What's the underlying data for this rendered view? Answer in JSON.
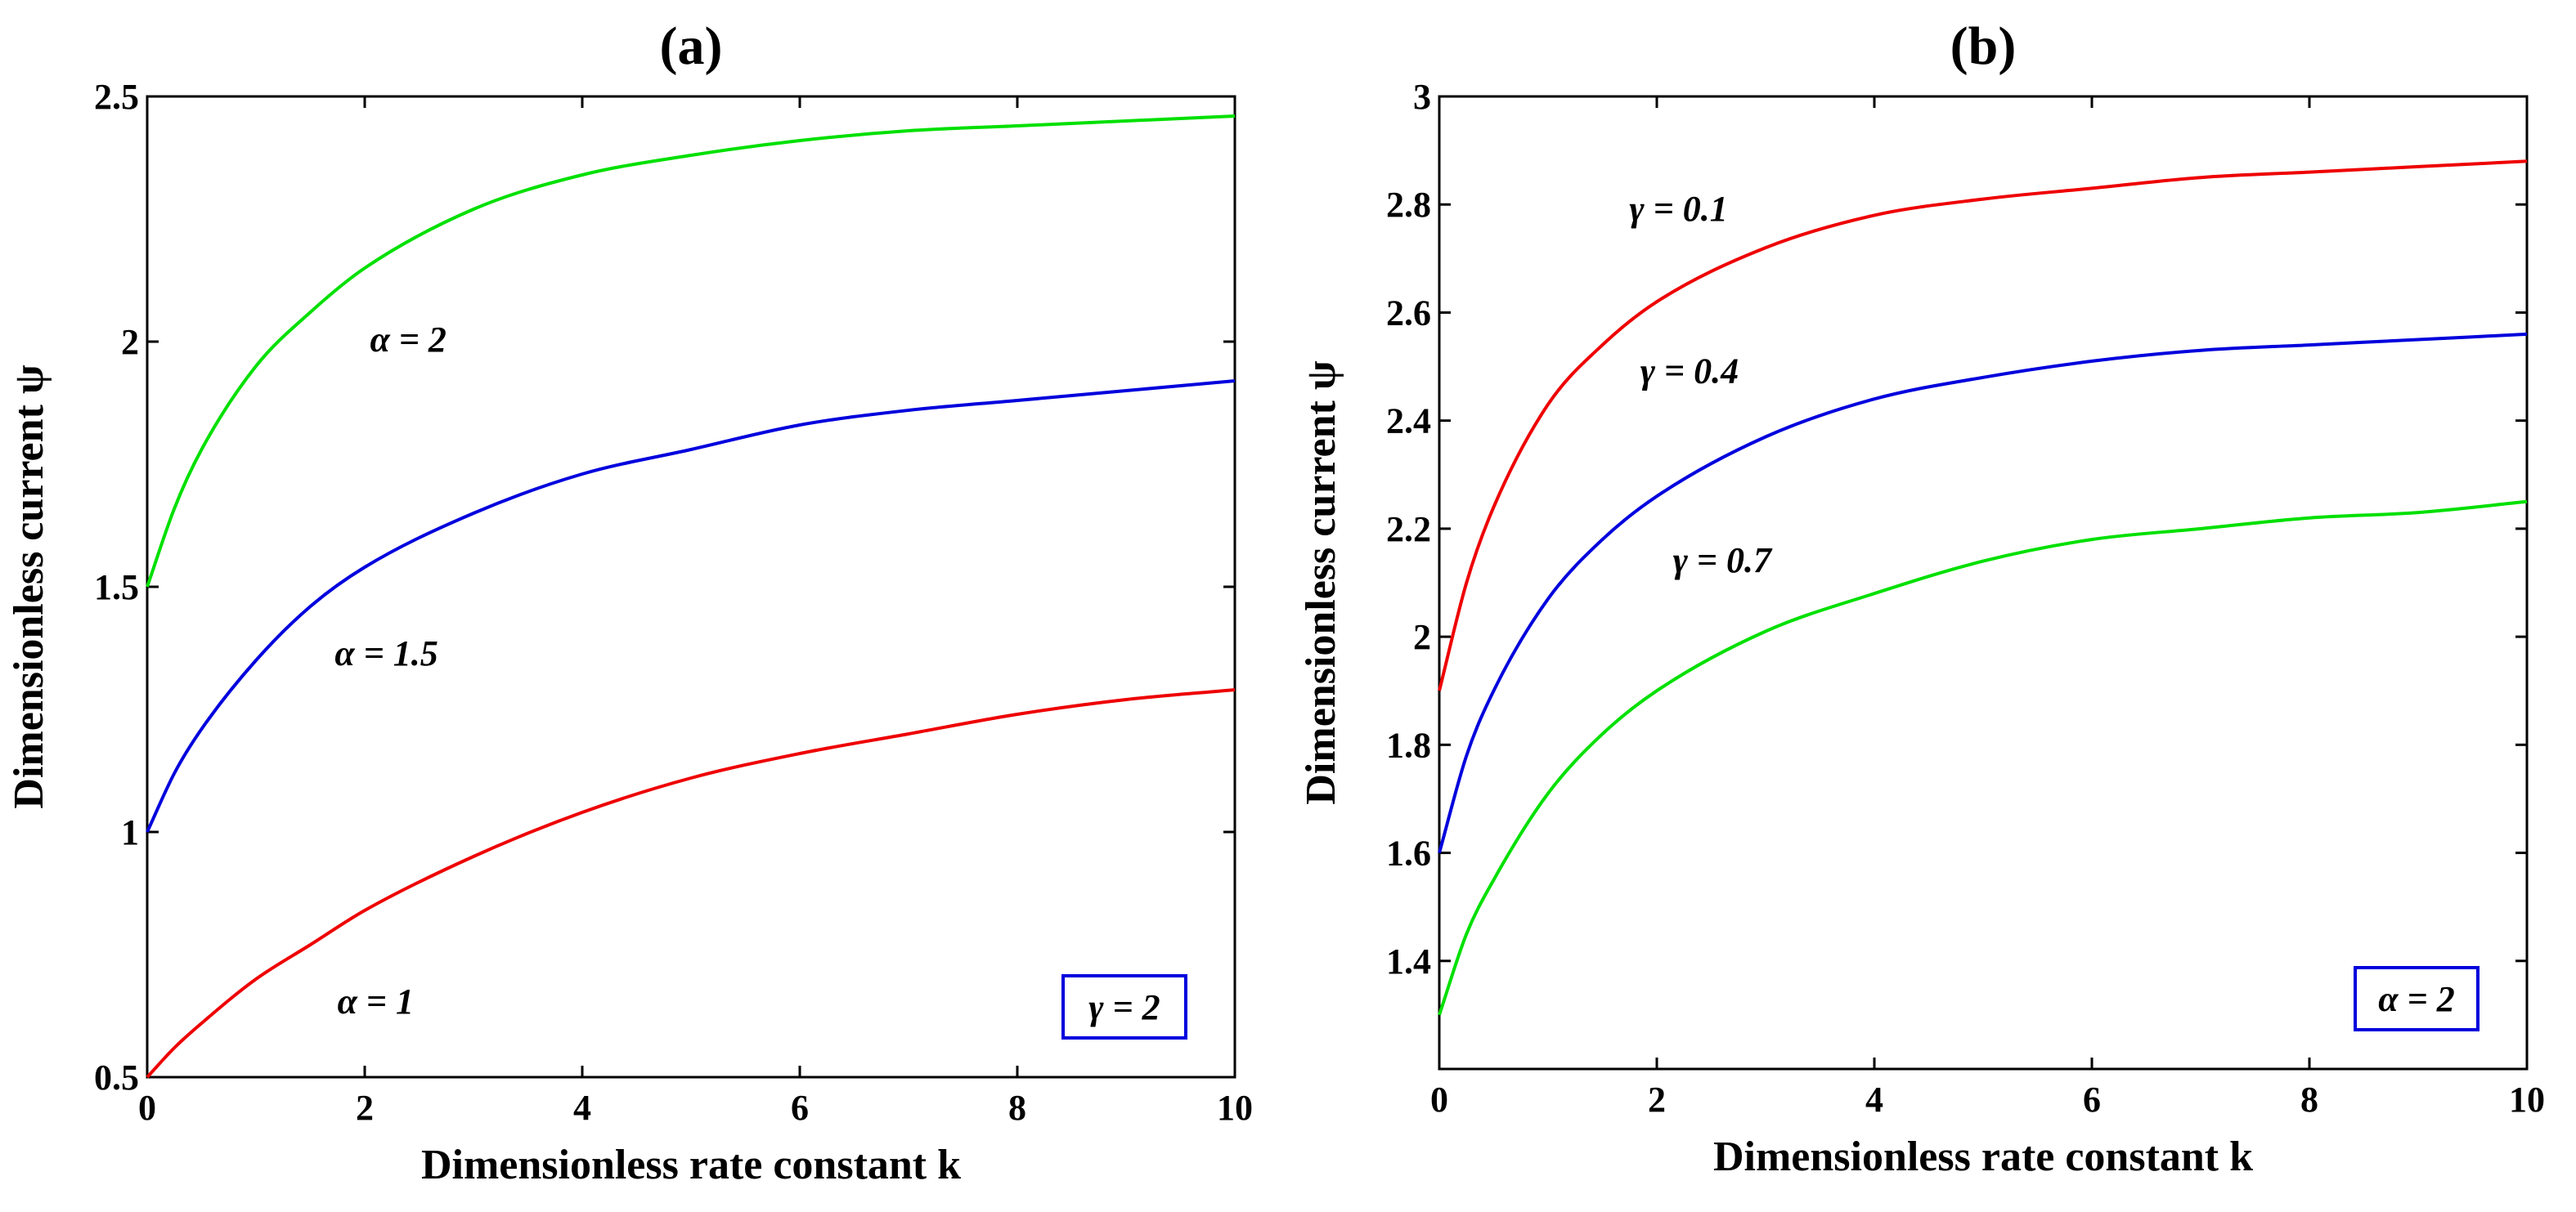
{
  "chart_data": [
    {
      "id": "a",
      "type": "line",
      "title": "(a)",
      "xlabel": "Dimensionless rate constant k",
      "ylabel": "Dimensionless current  ψ",
      "xlim": [
        0,
        10
      ],
      "ylim": [
        0.5,
        2.5
      ],
      "xticks": [
        0,
        2,
        4,
        6,
        8,
        10
      ],
      "xtick_labels": [
        "0",
        "2",
        "4",
        "6",
        "8",
        "10"
      ],
      "yticks": [
        0.5,
        1,
        1.5,
        2,
        2.5
      ],
      "ytick_labels": [
        "0.5",
        "1",
        "1.5",
        "2",
        "2.5"
      ],
      "x": [
        0,
        0.25,
        0.5,
        1,
        1.5,
        2,
        3,
        4,
        5,
        6,
        7,
        8,
        9,
        10
      ],
      "series": [
        {
          "name": "α = 2",
          "color": "#00e000",
          "values": [
            1.5,
            1.66,
            1.78,
            1.95,
            2.06,
            2.15,
            2.27,
            2.34,
            2.38,
            2.41,
            2.43,
            2.44,
            2.45,
            2.46
          ]
        },
        {
          "name": "α = 1.5",
          "color": "#0000dd",
          "values": [
            1.0,
            1.12,
            1.21,
            1.35,
            1.46,
            1.54,
            1.65,
            1.73,
            1.78,
            1.83,
            1.86,
            1.88,
            1.9,
            1.92
          ]
        },
        {
          "name": "α = 1",
          "color": "#ee0000",
          "values": [
            0.5,
            0.56,
            0.61,
            0.7,
            0.77,
            0.84,
            0.95,
            1.04,
            1.11,
            1.16,
            1.2,
            1.24,
            1.27,
            1.29
          ]
        }
      ],
      "curve_labels": [
        {
          "text": "α = 2",
          "x": 2.4,
          "y": 1.98
        },
        {
          "text": "α = 1.5",
          "x": 2.2,
          "y": 1.34
        },
        {
          "text": "α = 1",
          "x": 2.1,
          "y": 0.63
        }
      ],
      "legend_box": {
        "text": "γ = 2",
        "position": "bottom-right"
      }
    },
    {
      "id": "b",
      "type": "line",
      "title": "(b)",
      "xlabel": "Dimensionless rate constant k",
      "ylabel": "Dimensionless current  ψ",
      "xlim": [
        0,
        10
      ],
      "ylim": [
        1.2,
        3
      ],
      "xticks": [
        0,
        2,
        4,
        6,
        8,
        10
      ],
      "xtick_labels": [
        "0",
        "2",
        "4",
        "6",
        "8",
        "10"
      ],
      "yticks": [
        1.4,
        1.6,
        1.8,
        2,
        2.2,
        2.4,
        2.6,
        2.8,
        3
      ],
      "ytick_labels": [
        "1.4",
        "1.6",
        "1.8",
        "2",
        "2.2",
        "2.4",
        "2.6",
        "2.8",
        "3"
      ],
      "x": [
        0,
        0.25,
        0.5,
        1,
        1.5,
        2,
        3,
        4,
        5,
        6,
        7,
        8,
        9,
        10
      ],
      "series": [
        {
          "name": "γ = 0.1",
          "color": "#ee0000",
          "values": [
            1.9,
            2.1,
            2.24,
            2.43,
            2.54,
            2.62,
            2.72,
            2.78,
            2.81,
            2.83,
            2.85,
            2.86,
            2.87,
            2.88
          ]
        },
        {
          "name": "γ = 0.4",
          "color": "#0000dd",
          "values": [
            1.6,
            1.78,
            1.9,
            2.07,
            2.18,
            2.26,
            2.37,
            2.44,
            2.48,
            2.51,
            2.53,
            2.54,
            2.55,
            2.56
          ]
        },
        {
          "name": "γ = 0.7",
          "color": "#00e000",
          "values": [
            1.3,
            1.45,
            1.55,
            1.71,
            1.82,
            1.9,
            2.01,
            2.08,
            2.14,
            2.18,
            2.2,
            2.22,
            2.23,
            2.25
          ]
        }
      ],
      "curve_labels": [
        {
          "text": "γ = 0.1",
          "x": 2.2,
          "y": 2.77
        },
        {
          "text": "γ = 0.4",
          "x": 2.3,
          "y": 2.47
        },
        {
          "text": "γ = 0.7",
          "x": 2.6,
          "y": 2.12
        }
      ],
      "legend_box": {
        "text": "α = 2",
        "position": "bottom-right"
      }
    }
  ]
}
